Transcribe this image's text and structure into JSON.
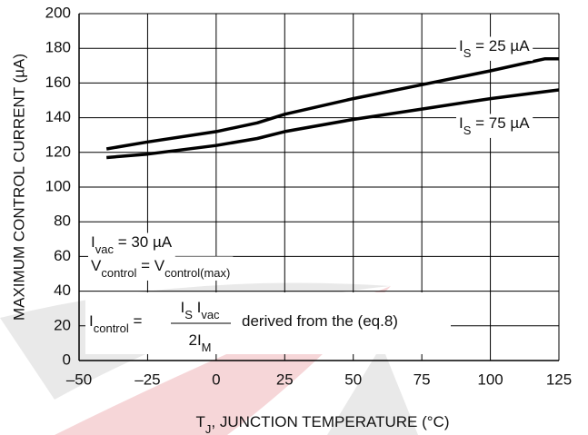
{
  "chart_data": {
    "type": "line",
    "x": [
      -40,
      -25,
      0,
      15,
      25,
      50,
      75,
      100,
      120,
      125
    ],
    "series": [
      {
        "label_parts": [
          {
            "text": "I"
          },
          {
            "text": "S",
            "sub": true
          },
          {
            "text": " = 25 µA"
          }
        ],
        "color": "#000000",
        "values": [
          122,
          126,
          132,
          137,
          142,
          151,
          159,
          167,
          174,
          174
        ]
      },
      {
        "label_parts": [
          {
            "text": "I"
          },
          {
            "text": "S",
            "sub": true
          },
          {
            "text": " = 75 µA"
          }
        ],
        "color": "#000000",
        "values": [
          117,
          119,
          124,
          128,
          132,
          139,
          145,
          151,
          155,
          156
        ]
      }
    ],
    "xlim": [
      -50,
      125
    ],
    "xticks": [
      {
        "value": -50,
        "label": "–50"
      },
      {
        "value": -25,
        "label": "–25"
      },
      0,
      25,
      50,
      75,
      100,
      125
    ],
    "ylim": [
      0,
      200
    ],
    "yticks": [
      0,
      20,
      40,
      60,
      80,
      100,
      120,
      140,
      160,
      180,
      200
    ],
    "grid": true,
    "y_label": "MAXIMUM CONTROL CURRENT (µA)",
    "x_label_parts": [
      {
        "text": "T"
      },
      {
        "text": "J",
        "sub": true
      },
      {
        "text": ", JUNCTION TEMPERATURE (°C)"
      }
    ],
    "annotations": [
      {
        "parts": [
          {
            "text": "I"
          },
          {
            "text": "vac",
            "sub": true
          },
          {
            "text": " = 30 µA"
          }
        ]
      },
      {
        "parts": [
          {
            "text": "V"
          },
          {
            "text": "control",
            "sub": true
          },
          {
            "text": " = V"
          },
          {
            "text": "control(max)",
            "sub": true
          }
        ]
      },
      {
        "lhs": [
          {
            "text": "I"
          },
          {
            "text": "control",
            "sub": true
          },
          {
            "text": " ="
          }
        ],
        "numerator": [
          {
            "text": "I"
          },
          {
            "text": "S",
            "sub": true
          },
          {
            "text": " I"
          },
          {
            "text": "vac",
            "sub": true
          }
        ],
        "denominator": [
          {
            "text": "2I"
          },
          {
            "text": "M",
            "sub": true
          }
        ],
        "rhs": [
          {
            "text": "derived from the (eq.8)"
          }
        ]
      }
    ]
  }
}
